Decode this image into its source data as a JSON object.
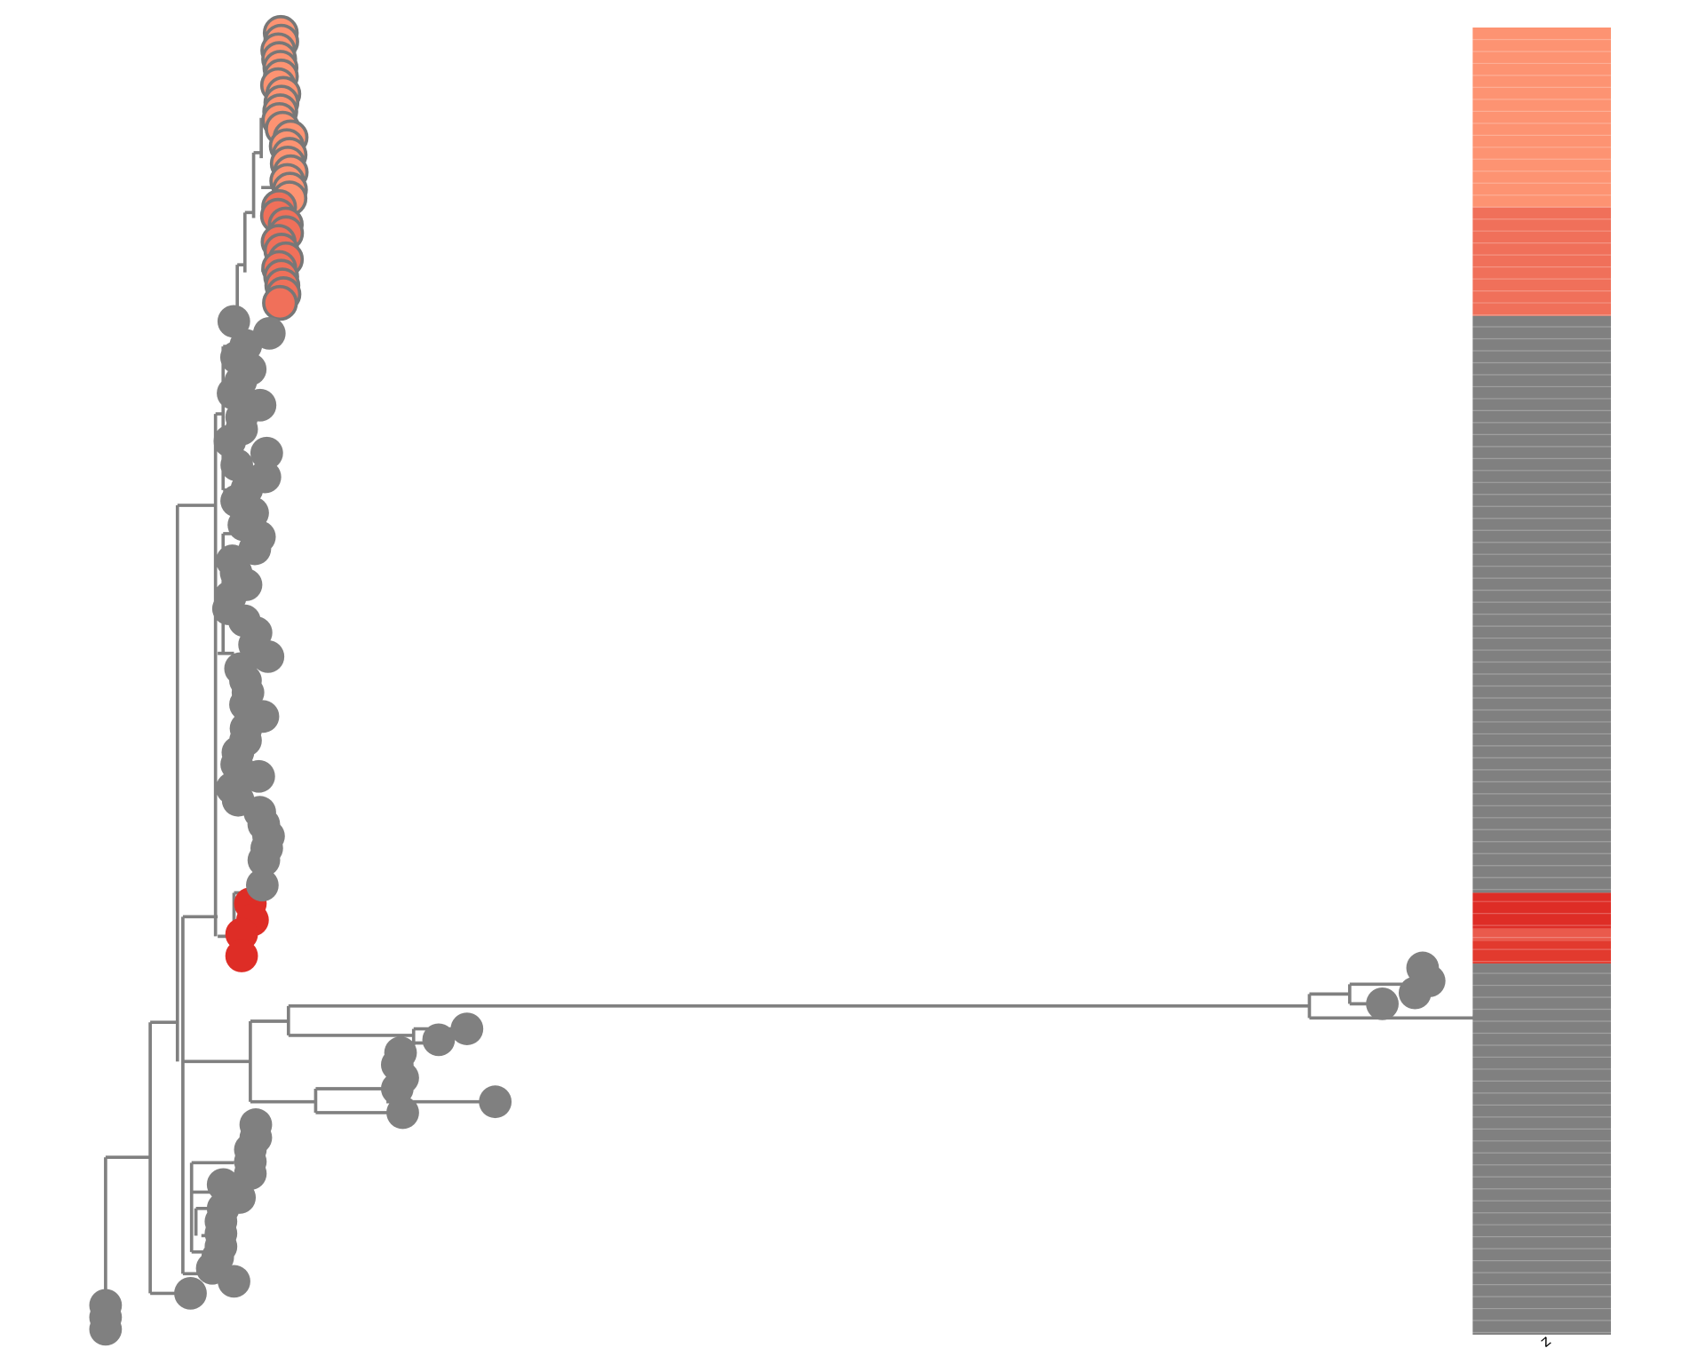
{
  "heatmap": {
    "column_label": "z"
  }
}
